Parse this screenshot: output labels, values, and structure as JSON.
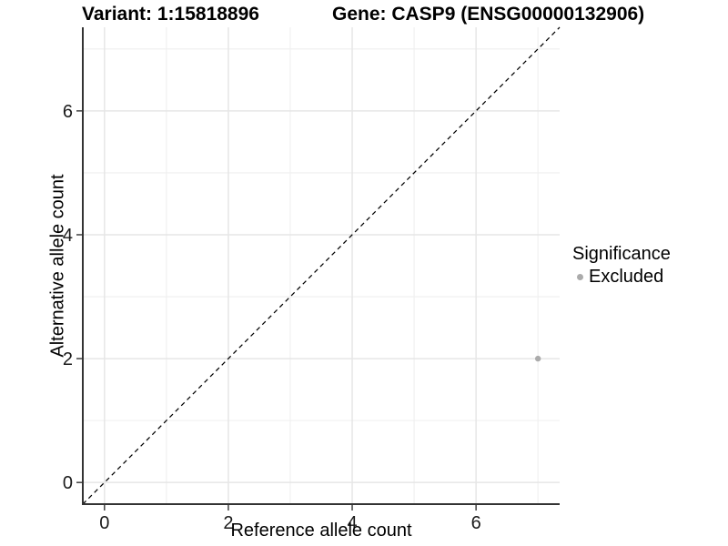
{
  "header": {
    "title_left": "Variant: 1:15818896",
    "title_right": "Gene: CASP9 (ENSG00000132906)"
  },
  "chart_data": {
    "type": "scatter",
    "title_left": "Variant: 1:15818896",
    "title_right": "Gene: CASP9 (ENSG00000132906)",
    "xlabel": "Reference allele count",
    "ylabel": "Alternative allele count",
    "xlim": [
      -0.35,
      7.35
    ],
    "ylim": [
      -0.35,
      7.35
    ],
    "x_major_ticks": [
      0,
      2,
      4,
      6
    ],
    "y_major_ticks": [
      0,
      2,
      4,
      6
    ],
    "x_minor_ticks": [
      1,
      3,
      5,
      7
    ],
    "y_minor_ticks": [
      1,
      3,
      5,
      7
    ],
    "grid": true,
    "identity_line": {
      "equation": "y = x",
      "style": "dashed",
      "color": "#000000",
      "dash": "5,4"
    },
    "series": [
      {
        "name": "Excluded",
        "color": "#ababab",
        "points": [
          {
            "x": 7,
            "y": 2
          }
        ]
      }
    ],
    "legend": {
      "position": "right",
      "title": "Significance",
      "items": [
        {
          "label": "Excluded",
          "color": "#ababab"
        }
      ]
    },
    "colors": {
      "background": "#ffffff",
      "axis_line": "#333333",
      "tick_mark": "#333333",
      "tick_label": "#1a1a1a",
      "grid_major": "#e6e6e6",
      "grid_minor": "#efefef"
    }
  }
}
